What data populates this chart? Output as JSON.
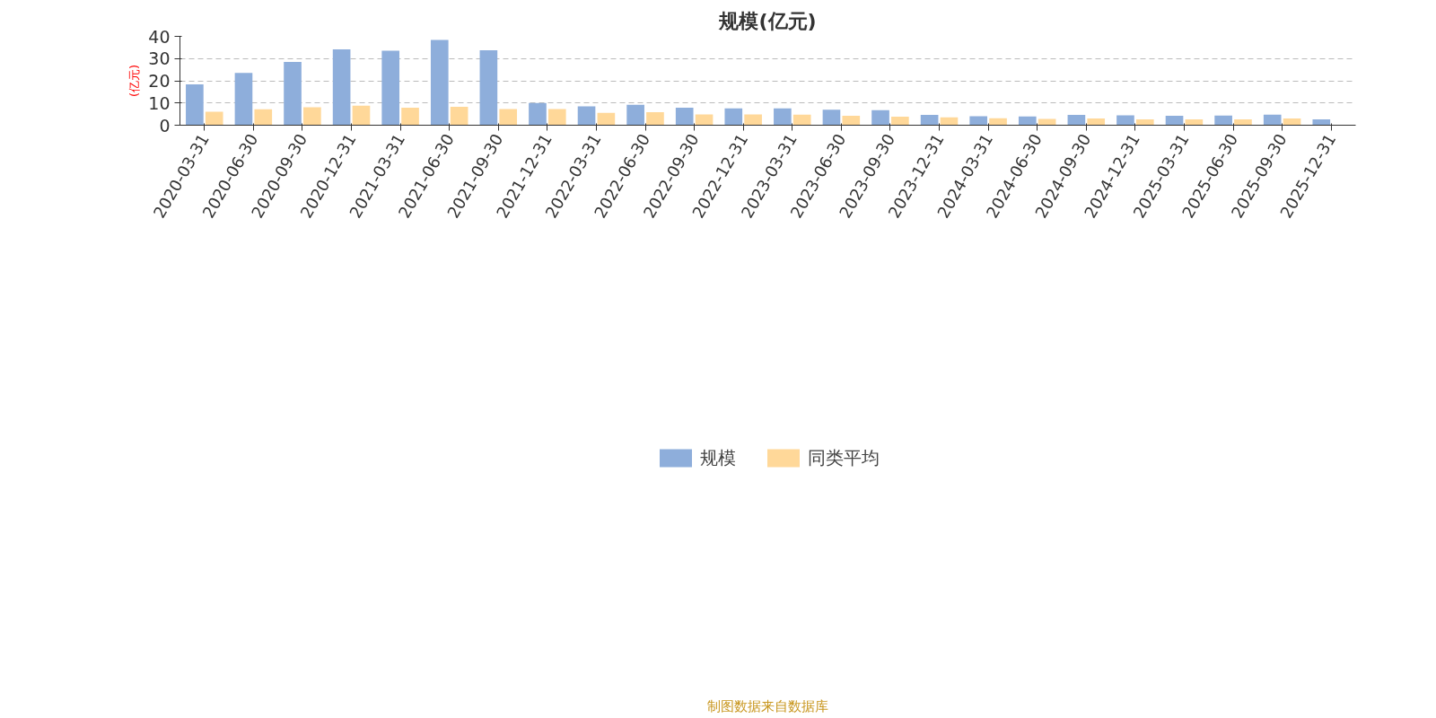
{
  "chart_data": {
    "type": "bar",
    "title": "规模(亿元)",
    "ylabel": "(亿元)",
    "categories": [
      "2020-03-31",
      "2020-06-30",
      "2020-09-30",
      "2020-12-31",
      "2021-03-31",
      "2021-06-30",
      "2021-09-30",
      "2021-12-31",
      "2022-03-31",
      "2022-06-30",
      "2022-09-30",
      "2022-12-31",
      "2023-03-31",
      "2023-06-30",
      "2023-09-30",
      "2023-12-31",
      "2024-03-31",
      "2024-06-30",
      "2024-09-30",
      "2024-12-31",
      "2025-03-31",
      "2025-06-30",
      "2025-09-30",
      "2025-12-31"
    ],
    "series": [
      {
        "name": "规模",
        "color": "#8eaedb",
        "values": [
          18.4,
          23.5,
          28.5,
          34.1,
          33.5,
          38.4,
          33.7,
          10.0,
          8.5,
          9.2,
          7.9,
          7.6,
          7.6,
          7.0,
          6.8,
          4.6,
          4.0,
          3.9,
          4.6,
          4.4,
          4.2,
          4.3,
          4.7,
          2.6
        ]
      },
      {
        "name": "同类平均",
        "color": "#ffd899",
        "values": [
          6.1,
          7.2,
          8.1,
          8.8,
          7.9,
          8.3,
          7.3,
          7.3,
          5.6,
          5.9,
          4.8,
          4.8,
          4.7,
          4.2,
          3.8,
          3.5,
          3.1,
          2.8,
          3.0,
          2.6,
          2.6,
          2.6,
          3.0,
          null
        ]
      }
    ],
    "ylim": [
      0,
      40
    ],
    "yticks": [
      0,
      10,
      20,
      30,
      40
    ],
    "grid": "y",
    "legend": "bottom",
    "annotations": [
      "制图数据来自数据库"
    ]
  }
}
